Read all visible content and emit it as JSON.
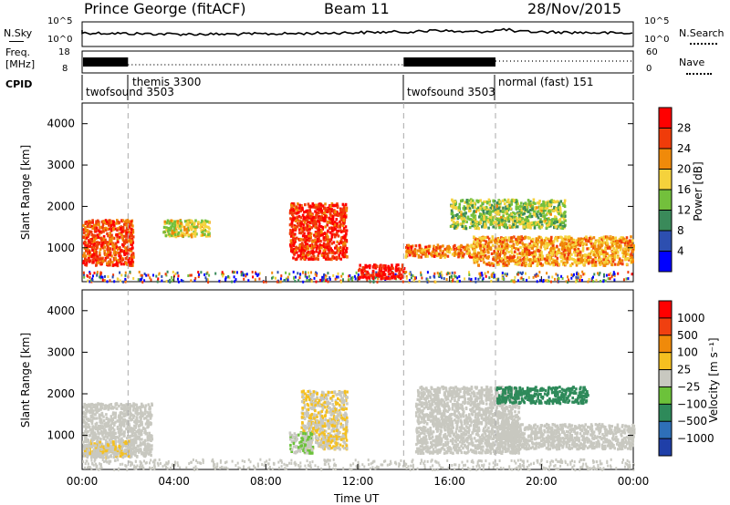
{
  "header": {
    "station": "Prince George (fitACF)",
    "beam": "Beam 11",
    "date": "28/Nov/2015"
  },
  "nsky_panel": {
    "label": "N.Sky",
    "right_label": "N.Search",
    "ticks_left": [
      "10^5",
      "10^0"
    ],
    "ticks_right": [
      "10^5",
      "10^0"
    ]
  },
  "freq_panel": {
    "label_line1": "Freq.",
    "label_line2": "[MHz]",
    "right_label": "Nave",
    "ticks_left": [
      "18",
      "8"
    ],
    "ticks_right": [
      "60",
      "0"
    ]
  },
  "cpid_panel": {
    "label": "CPID",
    "modes": [
      {
        "name": "twofsound 3503",
        "start_hour": 0.0
      },
      {
        "name": "themis 3300",
        "start_hour": 2.0
      },
      {
        "name": "twofsound 3503",
        "start_hour": 14.0
      },
      {
        "name": "normal (fast) 151",
        "start_hour": 18.0
      }
    ]
  },
  "power_panel": {
    "ylabel": "Slant Range [km]",
    "yticks": [
      "4000",
      "3000",
      "2000",
      "1000"
    ],
    "colorbar_title": "Power [dB]",
    "colorbar_ticks": [
      "28",
      "24",
      "20",
      "16",
      "12",
      "8",
      "4"
    ],
    "colors": [
      "#0000ff",
      "#2d4fb0",
      "#3a8a5a",
      "#73c03c",
      "#f5d23c",
      "#f08a0a",
      "#f03c0a",
      "#ff0000"
    ]
  },
  "velocity_panel": {
    "ylabel": "Slant Range [km]",
    "yticks": [
      "4000",
      "3000",
      "2000",
      "1000"
    ],
    "colorbar_title": "Velocity [m s⁻¹]",
    "colorbar_ticks": [
      "1000",
      "500",
      "100",
      "25",
      "−25",
      "−100",
      "−500",
      "−1000"
    ],
    "colors": [
      "#1f3fa8",
      "#2e6fb8",
      "#2e8a5a",
      "#6cc23a",
      "#c8c8c0",
      "#f5c020",
      "#f08a0a",
      "#f04010",
      "#ff0000"
    ]
  },
  "x_axis": {
    "label": "Time UT",
    "ticks": [
      "00:00",
      "04:00",
      "08:00",
      "12:00",
      "16:00",
      "20:00",
      "00:00"
    ]
  },
  "chart_data": [
    {
      "type": "heatmap",
      "title": "Power",
      "x_range_hours": [
        0,
        24
      ],
      "y_range_km": [
        180,
        4500
      ],
      "regions": [
        {
          "t0": 0.0,
          "t1": 2.2,
          "r0": 600,
          "r1": 1700,
          "value": 26
        },
        {
          "t0": 3.5,
          "t1": 5.5,
          "r0": 1300,
          "r1": 1700,
          "value": 18
        },
        {
          "t0": 9.0,
          "t1": 11.5,
          "r0": 750,
          "r1": 2100,
          "value": 28
        },
        {
          "t0": 12.0,
          "t1": 14.0,
          "r0": 280,
          "r1": 620,
          "value": 30
        },
        {
          "t0": 14.0,
          "t1": 17.0,
          "r0": 800,
          "r1": 1100,
          "value": 24
        },
        {
          "t0": 17.0,
          "t1": 24.0,
          "r0": 600,
          "r1": 1300,
          "value": 22
        },
        {
          "t0": 16.0,
          "t1": 21.0,
          "r0": 1500,
          "r1": 2200,
          "value": 16
        }
      ]
    },
    {
      "type": "heatmap",
      "title": "Velocity",
      "x_range_hours": [
        0,
        24
      ],
      "y_range_km": [
        180,
        4500
      ],
      "regions": [
        {
          "t0": 0.0,
          "t1": 3.0,
          "r0": 500,
          "r1": 1800,
          "value": 0
        },
        {
          "t0": 0.0,
          "t1": 2.0,
          "r0": 500,
          "r1": 900,
          "value": 100
        },
        {
          "t0": 9.5,
          "t1": 11.5,
          "r0": 700,
          "r1": 2100,
          "value": 100
        },
        {
          "t0": 9.0,
          "t1": 10.0,
          "r0": 600,
          "r1": 1100,
          "value": -100
        },
        {
          "t0": 14.5,
          "t1": 19.0,
          "r0": 600,
          "r1": 2200,
          "value": 0
        },
        {
          "t0": 18.0,
          "t1": 24.0,
          "r0": 700,
          "r1": 1300,
          "value": 0
        },
        {
          "t0": 18.0,
          "t1": 22.0,
          "r0": 1800,
          "r1": 2200,
          "value": -500
        }
      ]
    }
  ]
}
